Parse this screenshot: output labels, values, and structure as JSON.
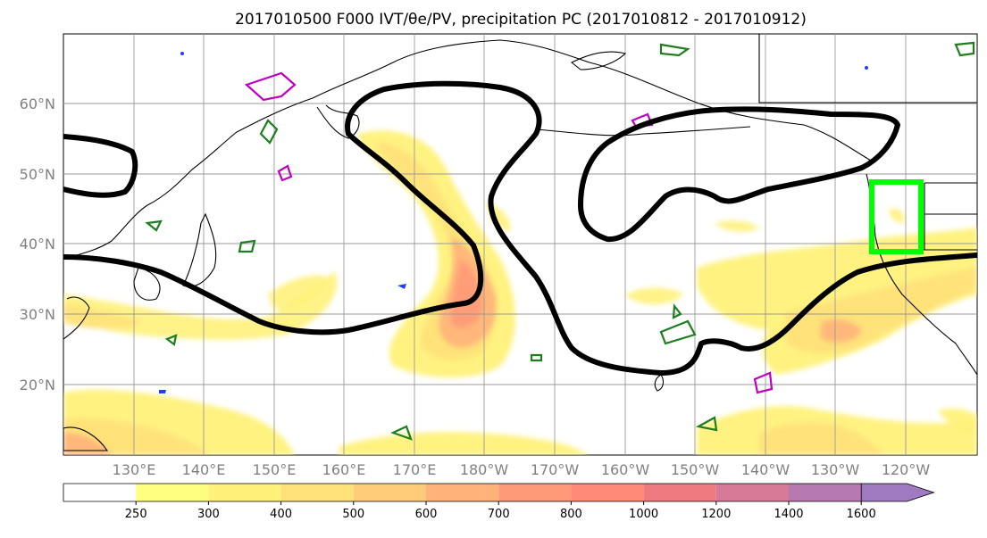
{
  "title": "2017010500 F000 IVT/θe/PV, precipitation PC (2017010812 - 2017010912)",
  "map": {
    "lat_labels": [
      "60°N",
      "50°N",
      "40°N",
      "30°N",
      "20°N"
    ],
    "lon_labels": [
      "130°E",
      "140°E",
      "150°E",
      "160°E",
      "170°E",
      "180°W",
      "170°W",
      "160°W",
      "150°W",
      "140°W",
      "130°W",
      "120°W"
    ],
    "highlight_box_color": "#00ff00",
    "theta_contour_color": "#000000",
    "pv_contour_color": "#1e7d1e",
    "precip_contour_color": "#c000c0"
  },
  "colorbar": {
    "ticks": [
      "250",
      "300",
      "400",
      "500",
      "600",
      "700",
      "800",
      "1000",
      "1200",
      "1400",
      "1600"
    ],
    "colors": [
      "#ffffff",
      "#ffff7f",
      "#fff17a",
      "#ffe17a",
      "#ffcc7a",
      "#ffb27a",
      "#ff9a78",
      "#ff8a78",
      "#ef7a80",
      "#d77a98",
      "#b77ab0",
      "#a07ac0"
    ]
  }
}
